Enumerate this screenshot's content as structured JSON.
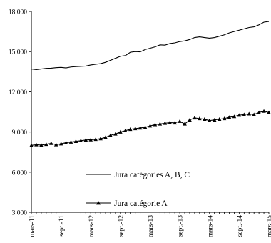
{
  "chart_data": {
    "type": "line",
    "title": "",
    "xlabel": "",
    "ylabel": "",
    "ylim": [
      3000,
      18000
    ],
    "yticks": [
      3000,
      6000,
      9000,
      12000,
      15000,
      18000
    ],
    "ytick_labels": [
      "3 000",
      "6 000",
      "9 000",
      "12 000",
      "15 000",
      "18 000"
    ],
    "x": [
      "2011-03",
      "2011-04",
      "2011-05",
      "2011-06",
      "2011-07",
      "2011-08",
      "2011-09",
      "2011-10",
      "2011-11",
      "2011-12",
      "2012-01",
      "2012-02",
      "2012-03",
      "2012-04",
      "2012-05",
      "2012-06",
      "2012-07",
      "2012-08",
      "2012-09",
      "2012-10",
      "2012-11",
      "2012-12",
      "2013-01",
      "2013-02",
      "2013-03",
      "2013-04",
      "2013-05",
      "2013-06",
      "2013-07",
      "2013-08",
      "2013-09",
      "2013-10",
      "2013-11",
      "2013-12",
      "2014-01",
      "2014-02",
      "2014-03",
      "2014-04",
      "2014-05",
      "2014-06",
      "2014-07",
      "2014-08",
      "2014-09",
      "2014-10",
      "2014-11",
      "2014-12",
      "2015-01",
      "2015-02",
      "2015-03"
    ],
    "xtick_labels": [
      "mars-11",
      "sept.-11",
      "mars-12",
      "sept.-12",
      "mars-13",
      "sept.-13",
      "mars-14",
      "sept.-14",
      "mars-15"
    ],
    "grid": false,
    "legend_position": "inside-lower-left",
    "series": [
      {
        "name": "Jura catégories A, B, C",
        "marker": "none",
        "color": "#000000",
        "values": [
          13700,
          13650,
          13700,
          13750,
          13760,
          13800,
          13820,
          13780,
          13850,
          13880,
          13900,
          13920,
          14000,
          14050,
          14100,
          14200,
          14350,
          14500,
          14650,
          14700,
          14950,
          15000,
          14980,
          15150,
          15250,
          15350,
          15500,
          15480,
          15600,
          15650,
          15750,
          15800,
          15900,
          16050,
          16100,
          16050,
          16000,
          16050,
          16150,
          16250,
          16400,
          16500,
          16600,
          16700,
          16800,
          16850,
          17000,
          17200,
          17250
        ]
      },
      {
        "name": "Jura catégorie A",
        "marker": "triangle",
        "color": "#000000",
        "values": [
          8000,
          8050,
          8020,
          8080,
          8150,
          8050,
          8120,
          8200,
          8250,
          8300,
          8350,
          8400,
          8420,
          8450,
          8500,
          8600,
          8750,
          8850,
          9000,
          9100,
          9200,
          9250,
          9300,
          9350,
          9450,
          9550,
          9600,
          9650,
          9700,
          9680,
          9800,
          9600,
          9900,
          10050,
          10000,
          9950,
          9850,
          9900,
          9950,
          10000,
          10100,
          10150,
          10250,
          10300,
          10350,
          10300,
          10450,
          10550,
          10450
        ]
      }
    ]
  }
}
